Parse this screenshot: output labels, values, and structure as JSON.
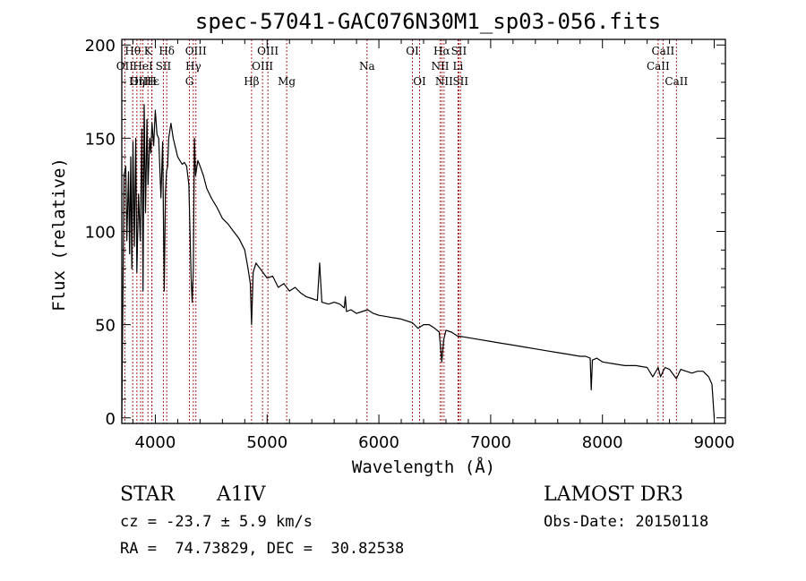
{
  "chart_data": {
    "type": "line",
    "title": "spec-57041-GAC076N30M1_sp03-056.fits",
    "xlabel": "Wavelength (Å)",
    "ylabel": "Flux (relative)",
    "xlim": [
      3700,
      9100
    ],
    "ylim": [
      -3,
      203
    ],
    "xticks": [
      4000,
      5000,
      6000,
      7000,
      8000,
      9000
    ],
    "xtick_labels": [
      "4000",
      "5000",
      "6000",
      "7000",
      "8000",
      "9000"
    ],
    "yticks": [
      0,
      50,
      100,
      150,
      200
    ],
    "ytick_labels": [
      "0",
      "50",
      "100",
      "150",
      "200"
    ],
    "series": [
      {
        "name": "spectrum",
        "x": [
          3700,
          3720,
          3735,
          3745,
          3760,
          3770,
          3780,
          3790,
          3800,
          3812,
          3825,
          3835,
          3850,
          3865,
          3880,
          3890,
          3900,
          3912,
          3925,
          3935,
          3950,
          3960,
          3970,
          3985,
          4000,
          4015,
          4030,
          4050,
          4065,
          4080,
          4090,
          4100,
          4110,
          4120,
          4140,
          4160,
          4180,
          4200,
          4220,
          4240,
          4260,
          4280,
          4300,
          4320,
          4330,
          4340,
          4350,
          4360,
          4380,
          4400,
          4430,
          4460,
          4500,
          4550,
          4600,
          4650,
          4700,
          4750,
          4800,
          4830,
          4850,
          4861,
          4875,
          4900,
          4950,
          5000,
          5050,
          5100,
          5150,
          5200,
          5250,
          5300,
          5350,
          5400,
          5450,
          5470,
          5490,
          5550,
          5600,
          5650,
          5690,
          5700,
          5710,
          5750,
          5800,
          5850,
          5900,
          5950,
          6000,
          6100,
          6200,
          6300,
          6350,
          6400,
          6450,
          6500,
          6540,
          6563,
          6580,
          6600,
          6650,
          6700,
          6800,
          6900,
          7000,
          7100,
          7200,
          7300,
          7400,
          7500,
          7600,
          7700,
          7800,
          7850,
          7890,
          7900,
          7910,
          7950,
          8000,
          8100,
          8200,
          8300,
          8400,
          8450,
          8498,
          8520,
          8542,
          8560,
          8600,
          8662,
          8700,
          8750,
          8800,
          8850,
          8900,
          8950,
          8980,
          9000
        ],
        "y": [
          0,
          130,
          135,
          95,
          132,
          88,
          140,
          80,
          148,
          92,
          150,
          78,
          120,
          95,
          155,
          68,
          168,
          110,
          160,
          125,
          150,
          142,
          158,
          146,
          165,
          152,
          150,
          118,
          148,
          68,
          120,
          132,
          135,
          150,
          158,
          150,
          145,
          140,
          138,
          136,
          137,
          135,
          125,
          75,
          62,
          80,
          150,
          130,
          138,
          135,
          130,
          123,
          118,
          113,
          107,
          104,
          100,
          96,
          90,
          80,
          72,
          50,
          78,
          83,
          79,
          75,
          76,
          70,
          72,
          68,
          70,
          67,
          65,
          64,
          63,
          83,
          62,
          61,
          62,
          61,
          59,
          65,
          57,
          58,
          56,
          57,
          58,
          56,
          55,
          54,
          53,
          51,
          48,
          50,
          50,
          48,
          46,
          30,
          42,
          47,
          46,
          44,
          43,
          42,
          41,
          40,
          39,
          38,
          37,
          36,
          35,
          34,
          33,
          33,
          32,
          15,
          31,
          32,
          30,
          29,
          28,
          28,
          27,
          22,
          27,
          22,
          25,
          27,
          26,
          21,
          26,
          25,
          24,
          25,
          25,
          22,
          18,
          0
        ]
      }
    ],
    "spectral_lines": [
      {
        "name": "Hθ",
        "wavelength": 3798,
        "row": 1
      },
      {
        "name": "OII",
        "wavelength": 3727,
        "row": 2
      },
      {
        "name": "OIII",
        "wavelength": 3869,
        "row": 3
      },
      {
        "name": "K",
        "wavelength": 3934,
        "row": 1
      },
      {
        "name": "Hε",
        "wavelength": 3970,
        "row": 3
      },
      {
        "name": "H",
        "wavelength": 3968,
        "row": 3
      },
      {
        "name": "HeI",
        "wavelength": 3889,
        "row": 2
      },
      {
        "name": "Hη",
        "wavelength": 3835,
        "row": 3
      },
      {
        "name": "SII",
        "wavelength": 4072,
        "row": 2
      },
      {
        "name": "Hδ",
        "wavelength": 4102,
        "row": 1
      },
      {
        "name": "OIII",
        "wavelength": 4363,
        "row": 1
      },
      {
        "name": "Hγ",
        "wavelength": 4340,
        "row": 2
      },
      {
        "name": "G",
        "wavelength": 4305,
        "row": 3
      },
      {
        "name": "Hβ",
        "wavelength": 4861,
        "row": 3
      },
      {
        "name": "OIII",
        "wavelength": 5007,
        "row": 1
      },
      {
        "name": "OIII",
        "wavelength": 4959,
        "row": 2
      },
      {
        "name": "Mg",
        "wavelength": 5175,
        "row": 3
      },
      {
        "name": "Na",
        "wavelength": 5894,
        "row": 2
      },
      {
        "name": "OI",
        "wavelength": 6300,
        "row": 1
      },
      {
        "name": "OI",
        "wavelength": 6364,
        "row": 3
      },
      {
        "name": "Hα",
        "wavelength": 6563,
        "row": 1
      },
      {
        "name": "NII",
        "wavelength": 6548,
        "row": 2
      },
      {
        "name": "NII",
        "wavelength": 6583,
        "row": 3
      },
      {
        "name": "SII",
        "wavelength": 6716,
        "row": 1
      },
      {
        "name": "Li",
        "wavelength": 6708,
        "row": 2
      },
      {
        "name": "SII",
        "wavelength": 6731,
        "row": 3
      },
      {
        "name": "CaII",
        "wavelength": 8542,
        "row": 1
      },
      {
        "name": "CaII",
        "wavelength": 8498,
        "row": 2
      },
      {
        "name": "CaII",
        "wavelength": 8662,
        "row": 3
      }
    ],
    "line_color": "#000000",
    "marker_color": "#b22222"
  },
  "info": {
    "object_class": "STAR",
    "subclass": "A1IV",
    "survey": "LAMOST DR3",
    "cz": "cz = -23.7 ± 5.9 km/s",
    "obs_date": "Obs-Date: 20150118",
    "coords": "RA =  74.73829, DEC =  30.82538"
  }
}
